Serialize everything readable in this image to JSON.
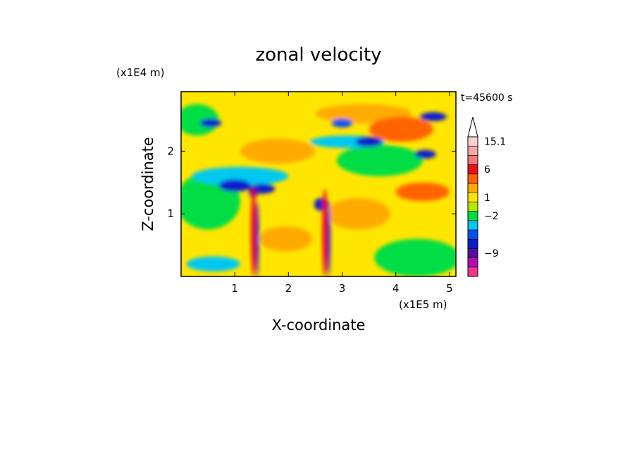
{
  "chart_data": {
    "type": "heatmap",
    "title": "zonal velocity",
    "xlabel": "X-coordinate",
    "ylabel": "Z-coordinate",
    "x_unit": "(x1E5 m)",
    "y_unit": "(x1E4 m)",
    "time_label": "t=45600 s",
    "x_ticks": [
      "1",
      "2",
      "3",
      "4",
      "5"
    ],
    "y_ticks": [
      "1",
      "2"
    ],
    "xlim": [
      0,
      5.12
    ],
    "ylim": [
      0,
      2.95
    ],
    "grid": false,
    "colorbar": {
      "position": "right",
      "extend": "max",
      "max_color": "#ffffff",
      "tick_labels": [
        "15.1",
        "6",
        "1",
        "-2",
        "-9"
      ],
      "bands": [
        {
          "color": "#f0368c"
        },
        {
          "color": "#b30ab3"
        },
        {
          "color": "#5a0aa0"
        },
        {
          "color": "#0a1ccc"
        },
        {
          "color": "#0050f0"
        },
        {
          "color": "#00c8f0"
        },
        {
          "color": "#00dd44"
        },
        {
          "color": "#b8e800"
        },
        {
          "color": "#ffe600"
        },
        {
          "color": "#ffaa00"
        },
        {
          "color": "#ff6400"
        },
        {
          "color": "#e81010"
        },
        {
          "color": "#f07878"
        },
        {
          "color": "#f5aaaa"
        },
        {
          "color": "#ffd0d0"
        }
      ]
    },
    "field": {
      "background_color": "#ffe600",
      "features": [
        {
          "kind": "jet",
          "x": 3.4,
          "z": 2.6,
          "rx": 0.9,
          "rz": 0.15,
          "color": "#ffaa00"
        },
        {
          "kind": "jet",
          "x": 4.1,
          "z": 2.35,
          "rx": 0.6,
          "rz": 0.2,
          "color": "#ff6400"
        },
        {
          "kind": "jet",
          "x": 4.5,
          "z": 1.35,
          "rx": 0.5,
          "rz": 0.15,
          "color": "#ff6400"
        },
        {
          "kind": "jet",
          "x": 1.8,
          "z": 2.0,
          "rx": 0.7,
          "rz": 0.2,
          "color": "#ffaa00"
        },
        {
          "kind": "jet",
          "x": 1.95,
          "z": 0.6,
          "rx": 0.5,
          "rz": 0.2,
          "color": "#ffaa00"
        },
        {
          "kind": "jet",
          "x": 3.3,
          "z": 1.0,
          "rx": 0.6,
          "rz": 0.25,
          "color": "#ffaa00"
        },
        {
          "kind": "jet",
          "x": 0.5,
          "z": 1.2,
          "rx": 0.6,
          "rz": 0.45,
          "color": "#00dd44"
        },
        {
          "kind": "jet",
          "x": 4.4,
          "z": 0.3,
          "rx": 0.8,
          "rz": 0.3,
          "color": "#00dd44"
        },
        {
          "kind": "jet",
          "x": 3.7,
          "z": 1.85,
          "rx": 0.8,
          "rz": 0.25,
          "color": "#00dd44"
        },
        {
          "kind": "jet",
          "x": 0.3,
          "z": 2.5,
          "rx": 0.4,
          "rz": 0.25,
          "color": "#00dd44"
        },
        {
          "kind": "jet",
          "x": 1.1,
          "z": 1.6,
          "rx": 0.9,
          "rz": 0.15,
          "color": "#00c8f0"
        },
        {
          "kind": "jet",
          "x": 3.1,
          "z": 2.15,
          "rx": 0.7,
          "rz": 0.1,
          "color": "#00c8f0"
        },
        {
          "kind": "jet",
          "x": 0.6,
          "z": 0.2,
          "rx": 0.5,
          "rz": 0.12,
          "color": "#00c8f0"
        },
        {
          "kind": "jet",
          "x": 1.5,
          "z": 1.4,
          "rx": 0.25,
          "rz": 0.08,
          "color": "#0a1ccc"
        },
        {
          "kind": "jet",
          "x": 1.0,
          "z": 1.45,
          "rx": 0.3,
          "rz": 0.1,
          "color": "#0a1ccc"
        },
        {
          "kind": "jet",
          "x": 0.55,
          "z": 2.45,
          "rx": 0.2,
          "rz": 0.07,
          "color": "#0a1ccc"
        },
        {
          "kind": "jet",
          "x": 3.5,
          "z": 2.15,
          "rx": 0.25,
          "rz": 0.08,
          "color": "#0a1ccc"
        },
        {
          "kind": "jet",
          "x": 4.55,
          "z": 1.95,
          "rx": 0.2,
          "rz": 0.07,
          "color": "#0a1ccc"
        },
        {
          "kind": "jet",
          "x": 4.7,
          "z": 2.55,
          "rx": 0.25,
          "rz": 0.07,
          "color": "#0a1ccc"
        },
        {
          "kind": "jet",
          "x": 2.6,
          "z": 1.15,
          "rx": 0.12,
          "rz": 0.1,
          "color": "#0a1ccc"
        },
        {
          "kind": "jet",
          "x": 3.0,
          "z": 2.45,
          "rx": 0.2,
          "rz": 0.07,
          "color": "#0050f0"
        },
        {
          "kind": "jet",
          "x": 1.35,
          "z": 1.35,
          "rx": 0.08,
          "rz": 0.1,
          "color": "#5a0aa0"
        },
        {
          "kind": "jet",
          "x": 2.68,
          "z": 1.15,
          "rx": 0.07,
          "rz": 0.08,
          "color": "#5a0aa0"
        },
        {
          "kind": "plume",
          "x": 1.35,
          "z": 0.7,
          "rx": 0.05,
          "rz": 0.7,
          "color": "#e81010"
        },
        {
          "kind": "plume",
          "x": 2.68,
          "z": 0.7,
          "rx": 0.05,
          "rz": 0.7,
          "color": "#e81010"
        },
        {
          "kind": "plume",
          "x": 1.42,
          "z": 0.6,
          "rx": 0.03,
          "rz": 0.6,
          "color": "#0a1ccc"
        },
        {
          "kind": "plume",
          "x": 2.75,
          "z": 0.6,
          "rx": 0.03,
          "rz": 0.6,
          "color": "#0a1ccc"
        }
      ]
    }
  }
}
